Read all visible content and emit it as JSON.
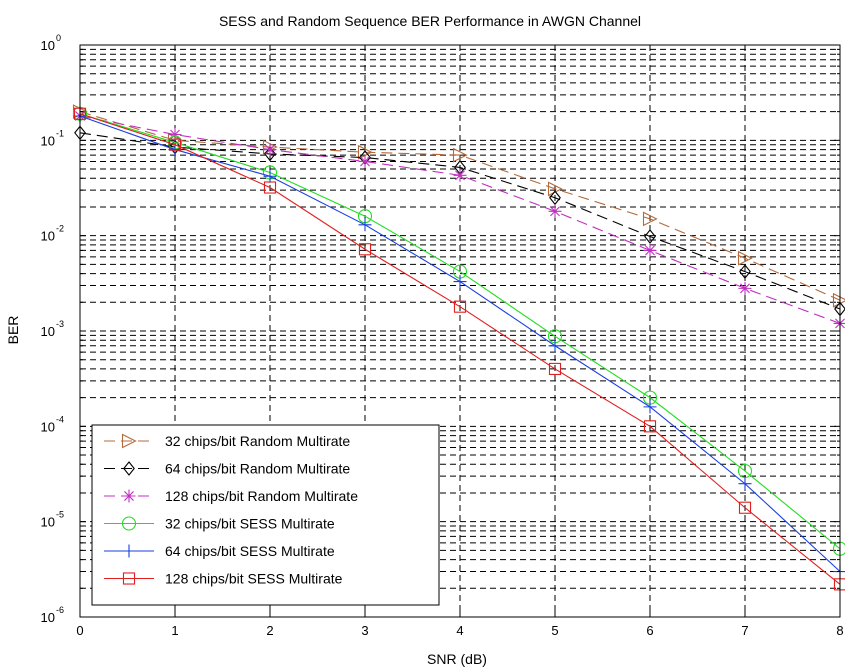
{
  "chart_data": {
    "type": "line",
    "title": "SESS and Random Sequence BER Performance in AWGN Channel",
    "xlabel": "SNR (dB)",
    "ylabel": "BER",
    "xlim": [
      0,
      8
    ],
    "ylim": [
      1e-06,
      1
    ],
    "yscale": "log",
    "grid": true,
    "legend_position": "bottom-left",
    "x_ticks": [
      "0",
      "1",
      "2",
      "3",
      "4",
      "5",
      "6",
      "7",
      "8"
    ],
    "y_tick_bases": [
      "10",
      "10",
      "10",
      "10",
      "10",
      "10",
      "10"
    ],
    "y_tick_exponents": [
      "-6",
      "-5",
      "-4",
      "-3",
      "-2",
      "-1",
      "0"
    ],
    "x": [
      0,
      1,
      2,
      3,
      4,
      5,
      6,
      7,
      8
    ],
    "series": [
      {
        "name": "32 chips/bit Random Multirate",
        "color": "#b5693a",
        "dash": "11,6",
        "marker": "triangle-right",
        "values": [
          0.2,
          0.1,
          0.085,
          0.075,
          0.07,
          0.031,
          0.015,
          0.0058,
          0.0021
        ]
      },
      {
        "name": "64 chips/bit Random Multirate",
        "color": "#000000",
        "dash": "11,6",
        "marker": "diamond",
        "values": [
          0.12,
          0.085,
          0.072,
          0.066,
          0.052,
          0.025,
          0.0098,
          0.0042,
          0.0017
        ]
      },
      {
        "name": "128 chips/bit Random Multirate",
        "color": "#c030c0",
        "dash": "11,6",
        "marker": "asterisk",
        "values": [
          0.18,
          0.115,
          0.08,
          0.06,
          0.043,
          0.018,
          0.007,
          0.0028,
          0.0012
        ]
      },
      {
        "name": "32 chips/bit SESS  Multirate",
        "color": "#22dd22",
        "dash": "",
        "marker": "circle",
        "values": [
          0.19,
          0.095,
          0.046,
          0.016,
          0.0042,
          0.00088,
          0.0002,
          3.4e-05,
          5.2e-06
        ]
      },
      {
        "name": "64 chips/bit SESS Multirate",
        "color": "#1a3fe0",
        "dash": "",
        "marker": "plus",
        "values": [
          0.18,
          0.08,
          0.042,
          0.013,
          0.0033,
          0.0007,
          0.00016,
          2.5e-05,
          3e-06
        ]
      },
      {
        "name": "128 chips/bit SESS  Multirate",
        "color": "#e02020",
        "dash": "",
        "marker": "square",
        "values": [
          0.19,
          0.09,
          0.032,
          0.0072,
          0.0018,
          0.0004,
          0.0001,
          1.4e-05,
          2.2e-06
        ]
      }
    ]
  }
}
